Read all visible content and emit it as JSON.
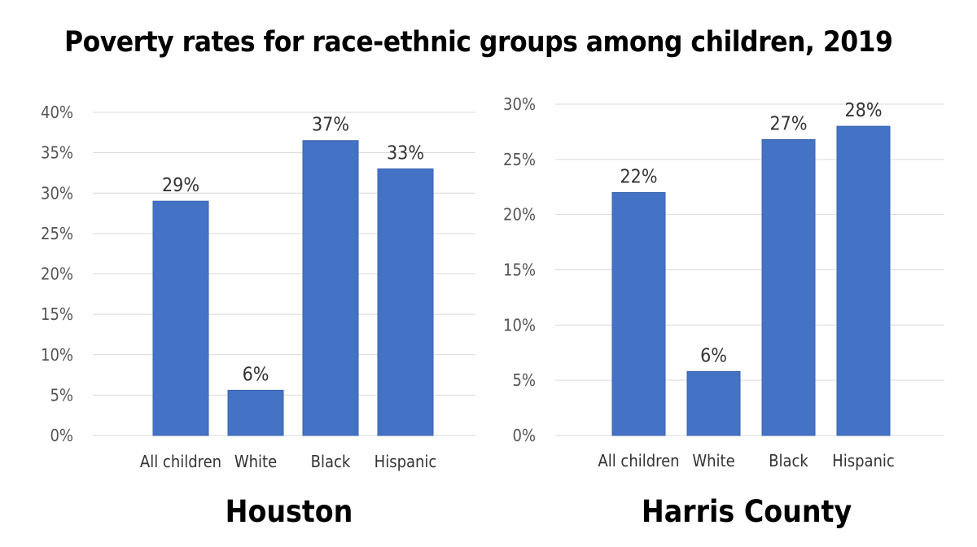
{
  "title": "Poverty rates for race-ethnic groups among children, 2019",
  "colors": {
    "bar": "#4472c4",
    "bar_edge": "#3a64b0",
    "grid": "#d9d9d9"
  },
  "chart_data": [
    {
      "type": "bar",
      "title": "Houston",
      "categories": [
        "All children",
        "White",
        "Black",
        "Hispanic"
      ],
      "values": [
        29,
        5.6,
        36.5,
        33
      ],
      "data_labels": [
        "29%",
        "6%",
        "37%",
        "33%"
      ],
      "ylim": [
        0,
        40
      ],
      "yticks": [
        "0%",
        "5%",
        "10%",
        "15%",
        "20%",
        "25%",
        "30%",
        "35%",
        "40%"
      ],
      "grid": true,
      "xlabel": "",
      "ylabel": ""
    },
    {
      "type": "bar",
      "title": "Harris County",
      "categories": [
        "All children",
        "White",
        "Black",
        "Hispanic"
      ],
      "values": [
        22,
        5.8,
        26.8,
        28
      ],
      "data_labels": [
        "22%",
        "6%",
        "27%",
        "28%"
      ],
      "ylim": [
        0,
        30
      ],
      "yticks": [
        "0%",
        "5%",
        "10%",
        "15%",
        "20%",
        "25%",
        "30%"
      ],
      "grid": true,
      "xlabel": "",
      "ylabel": ""
    }
  ]
}
